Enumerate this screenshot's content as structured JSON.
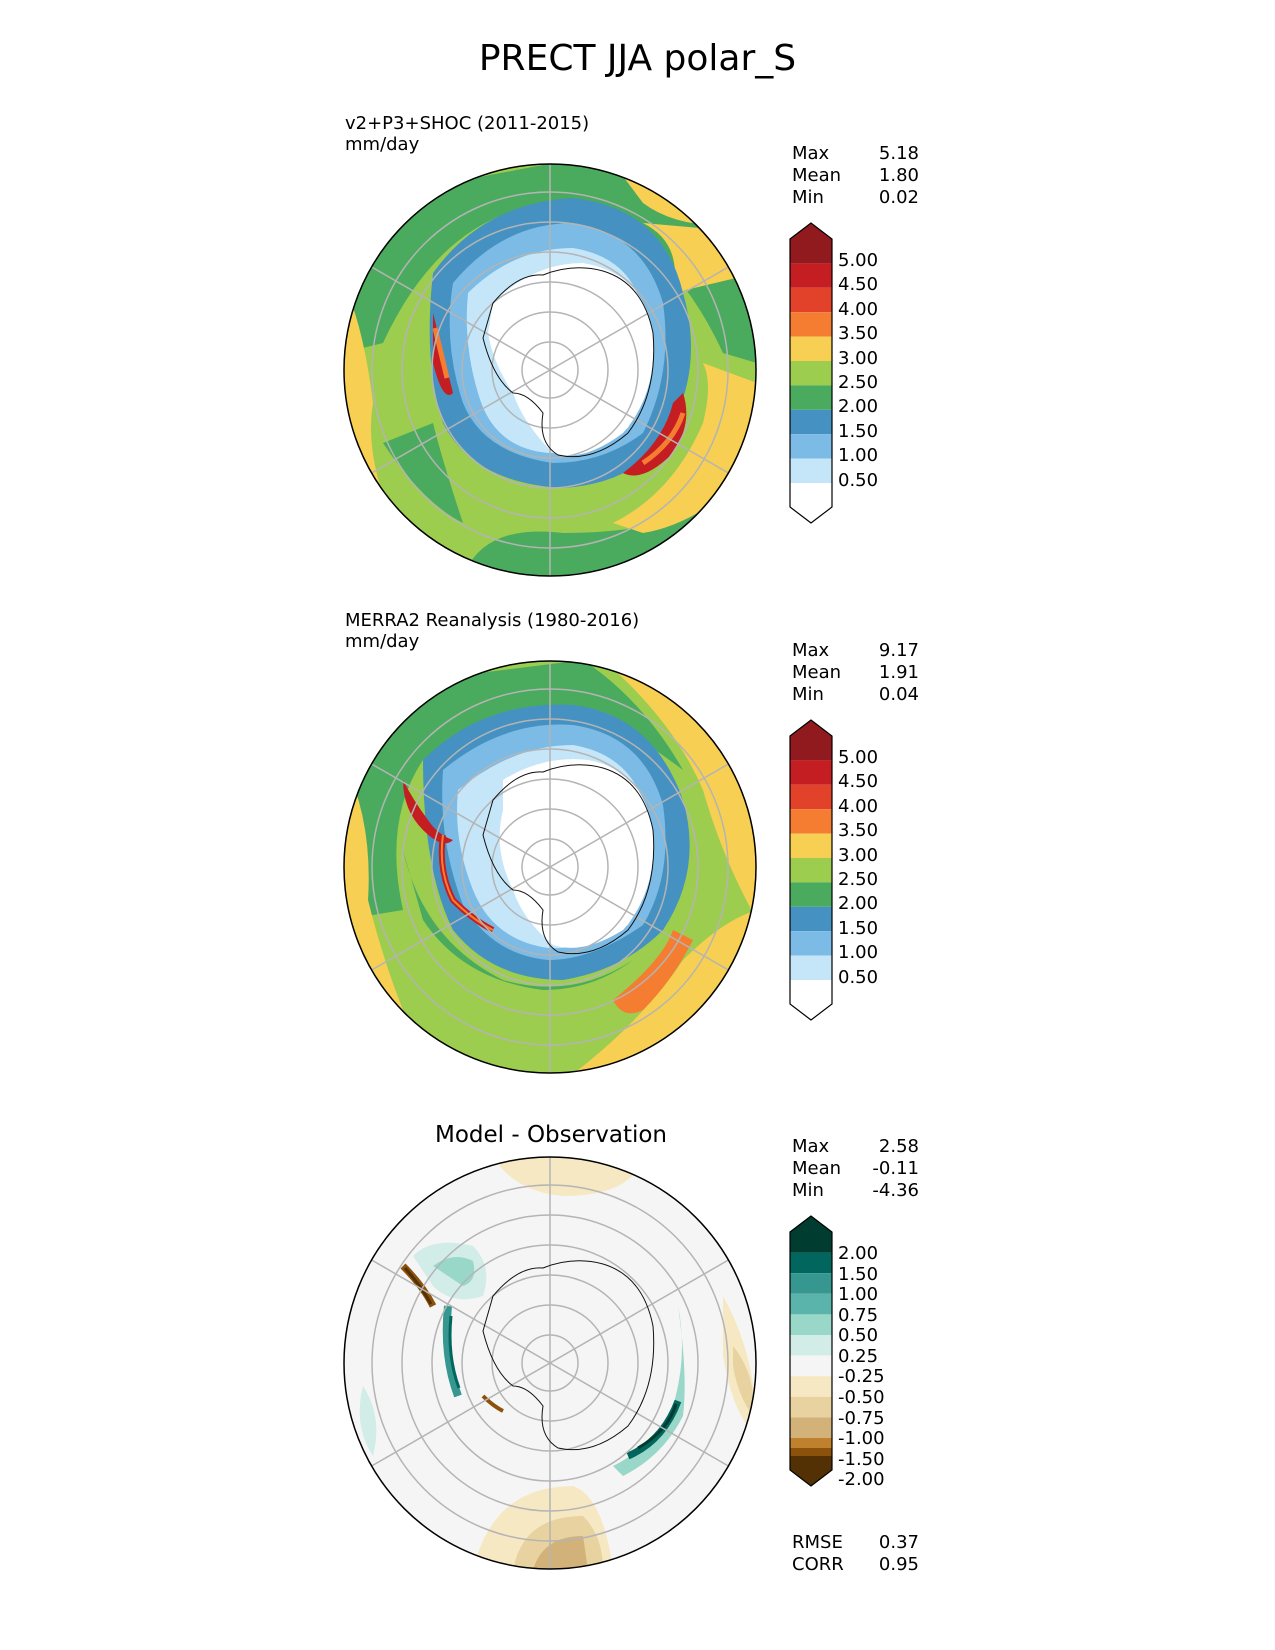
{
  "title": "PRECT JJA polar_S",
  "panels": [
    {
      "name": "test",
      "caption_line1": "v2+P3+SHOC (2011-2015)",
      "caption_line2": "mm/day",
      "stats": [
        {
          "label": "Max",
          "value": "5.18"
        },
        {
          "label": "Mean",
          "value": "1.80"
        },
        {
          "label": "Min",
          "value": "0.02"
        }
      ],
      "colorbar": {
        "labels": [
          "5.00",
          "4.50",
          "4.00",
          "3.50",
          "3.00",
          "2.50",
          "2.00",
          "1.50",
          "1.00",
          "0.50"
        ],
        "colors": [
          "#901a1e",
          "#c41e23",
          "#e2412a",
          "#f57d31",
          "#f7cf53",
          "#9dcd4f",
          "#4aab5e",
          "#4591c2",
          "#7cbbe5",
          "#c4e6f8",
          "#ffffff"
        ]
      }
    },
    {
      "name": "reference",
      "caption_line1": "MERRA2 Reanalysis (1980-2016)",
      "caption_line2": "mm/day",
      "stats": [
        {
          "label": "Max",
          "value": "9.17"
        },
        {
          "label": "Mean",
          "value": "1.91"
        },
        {
          "label": "Min",
          "value": "0.04"
        }
      ],
      "colorbar": {
        "labels": [
          "5.00",
          "4.50",
          "4.00",
          "3.50",
          "3.00",
          "2.50",
          "2.00",
          "1.50",
          "1.00",
          "0.50"
        ],
        "colors": [
          "#901a1e",
          "#c41e23",
          "#e2412a",
          "#f57d31",
          "#f7cf53",
          "#9dcd4f",
          "#4aab5e",
          "#4591c2",
          "#7cbbe5",
          "#c4e6f8",
          "#ffffff"
        ]
      }
    },
    {
      "name": "difference",
      "panel_title": "Model - Observation",
      "stats": [
        {
          "label": "Max",
          "value": "2.58"
        },
        {
          "label": "Mean",
          "value": "-0.11"
        },
        {
          "label": "Min",
          "value": "-4.36"
        }
      ],
      "colorbar": {
        "labels": [
          "2.00",
          "1.50",
          "1.00",
          "0.75",
          "0.50",
          "0.25",
          "-0.25",
          "-0.50",
          "-0.75",
          "-1.00",
          "-1.50",
          "-2.00"
        ],
        "colors": [
          "#003c30",
          "#01665e",
          "#35978f",
          "#5ab4ac",
          "#99d8c9",
          "#d2ede8",
          "#f5f5f5",
          "#f6e8c3",
          "#e8d29f",
          "#d3b27a",
          "#bf812d",
          "#8c510a",
          "#543005"
        ]
      },
      "metrics": [
        {
          "label": "RMSE",
          "value": "0.37"
        },
        {
          "label": "CORR",
          "value": "0.95"
        }
      ]
    }
  ]
}
